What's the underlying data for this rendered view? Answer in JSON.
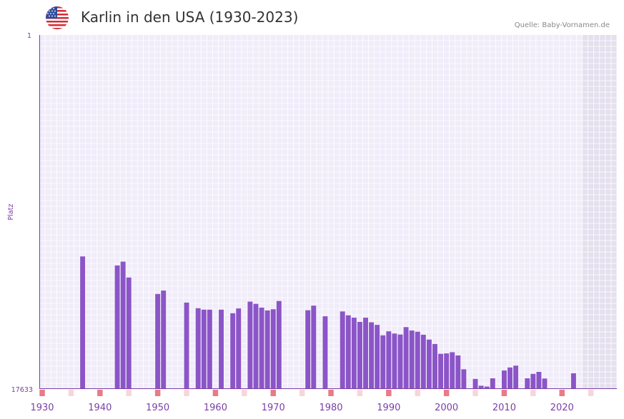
{
  "header": {
    "title": "Karlin in den USA (1930-2023)",
    "source": "Quelle: Baby-Vornamen.de",
    "flag_icon": "us-flag-icon"
  },
  "colors": {
    "bar": "#8b55c8",
    "axis": "#7a3fa8",
    "plot_bg": "#f0ecf9",
    "grid": "#ffffff",
    "shaded_bg": "#e4e0ee",
    "decade_marker": "#e87b85",
    "half_decade_marker": "#f6d6da"
  },
  "chart_data": {
    "type": "bar",
    "title": "Karlin in den USA (1930-2023)",
    "ylabel": "Platz",
    "y_top_label": "1",
    "y_bottom_label": "17633",
    "ylim": [
      17633,
      1
    ],
    "x_range": [
      1929.5,
      2029.5
    ],
    "shaded_from": 2023.5,
    "xticks": [
      1930,
      1940,
      1950,
      1960,
      1970,
      1980,
      1990,
      2000,
      2010,
      2020
    ],
    "xtick_labels": [
      "1930",
      "1940",
      "1950",
      "1960",
      "1970",
      "1980",
      "1990",
      "2000",
      "2010",
      "2020"
    ],
    "x": [
      1937,
      1943,
      1944,
      1945,
      1950,
      1951,
      1955,
      1957,
      1958,
      1959,
      1961,
      1963,
      1964,
      1966,
      1967,
      1968,
      1969,
      1970,
      1971,
      1976,
      1977,
      1979,
      1982,
      1983,
      1984,
      1985,
      1986,
      1987,
      1988,
      1989,
      1990,
      1991,
      1992,
      1993,
      1994,
      1995,
      1996,
      1997,
      1998,
      1999,
      2000,
      2001,
      2002,
      2003,
      2005,
      2006,
      2007,
      2008,
      2010,
      2011,
      2012,
      2014,
      2015,
      2016,
      2017,
      2022
    ],
    "values": [
      11030,
      11480,
      11290,
      12080,
      12900,
      12730,
      13330,
      13610,
      13680,
      13680,
      13680,
      13860,
      13620,
      13280,
      13390,
      13580,
      13720,
      13660,
      13250,
      13710,
      13480,
      14010,
      13770,
      13960,
      14080,
      14290,
      14080,
      14310,
      14440,
      14960,
      14760,
      14870,
      14920,
      14550,
      14720,
      14780,
      14930,
      15170,
      15390,
      15880,
      15860,
      15800,
      15960,
      16650,
      17130,
      17470,
      17510,
      17100,
      16710,
      16560,
      16470,
      17100,
      16880,
      16780,
      17110,
      16850
    ]
  }
}
